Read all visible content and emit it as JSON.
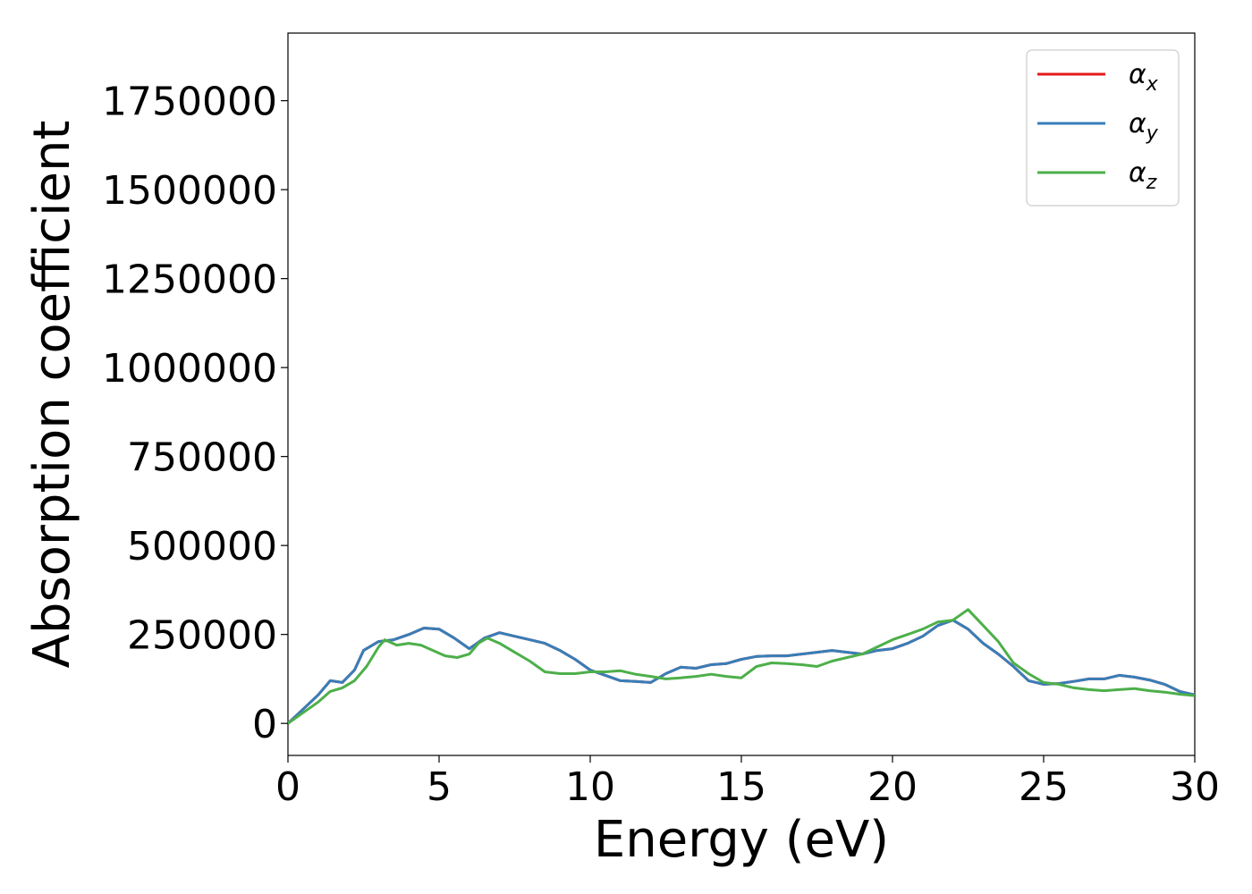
{
  "chart_data": {
    "type": "line",
    "title": "",
    "xlabel": "Energy (eV)",
    "ylabel": "Absorption coefficient",
    "xlim": [
      0,
      30
    ],
    "ylim": [
      -90000,
      1940000
    ],
    "xticks": [
      "0",
      "5",
      "10",
      "15",
      "20",
      "25",
      "30"
    ],
    "yticks": [
      "0",
      "250000",
      "500000",
      "750000",
      "1000000",
      "1250000",
      "1500000",
      "1750000"
    ],
    "grid": false,
    "legend_placement": "top-right",
    "series": [
      {
        "name": "α_x",
        "symbol": "α",
        "subscript": "x",
        "color": "#e41a1c",
        "x": [
          0,
          0.5,
          1,
          1.4,
          1.8,
          2.2,
          2.5,
          3,
          3.5,
          4,
          4.5,
          5,
          5.5,
          6,
          6.5,
          7,
          7.5,
          8,
          8.5,
          9,
          9.5,
          10,
          10.5,
          11,
          11.5,
          12,
          12.5,
          13,
          13.5,
          14,
          14.5,
          15,
          15.5,
          16,
          16.5,
          17,
          17.5,
          18,
          18.5,
          19,
          19.5,
          20,
          20.5,
          21,
          21.5,
          22,
          22.5,
          23,
          23.5,
          24,
          24.5,
          25,
          25.5,
          26,
          26.5,
          27,
          27.5,
          28,
          28.5,
          29,
          29.5,
          30
        ],
        "values": [
          0,
          40000,
          80000,
          120000,
          115000,
          150000,
          205000,
          230000,
          235000,
          250000,
          268000,
          265000,
          240000,
          210000,
          240000,
          255000,
          245000,
          235000,
          225000,
          205000,
          180000,
          150000,
          135000,
          120000,
          118000,
          115000,
          140000,
          158000,
          155000,
          165000,
          168000,
          180000,
          188000,
          190000,
          190000,
          195000,
          200000,
          205000,
          200000,
          195000,
          205000,
          210000,
          225000,
          245000,
          275000,
          290000,
          265000,
          225000,
          195000,
          160000,
          120000,
          110000,
          112000,
          118000,
          125000,
          125000,
          135000,
          130000,
          122000,
          110000,
          90000,
          80000
        ]
      },
      {
        "name": "α_y",
        "symbol": "α",
        "subscript": "y",
        "color": "#377eb8",
        "x": [
          0,
          0.5,
          1,
          1.4,
          1.8,
          2.2,
          2.5,
          3,
          3.5,
          4,
          4.5,
          5,
          5.5,
          6,
          6.5,
          7,
          7.5,
          8,
          8.5,
          9,
          9.5,
          10,
          10.5,
          11,
          11.5,
          12,
          12.5,
          13,
          13.5,
          14,
          14.5,
          15,
          15.5,
          16,
          16.5,
          17,
          17.5,
          18,
          18.5,
          19,
          19.5,
          20,
          20.5,
          21,
          21.5,
          22,
          22.5,
          23,
          23.5,
          24,
          24.5,
          25,
          25.5,
          26,
          26.5,
          27,
          27.5,
          28,
          28.5,
          29,
          29.5,
          30
        ],
        "values": [
          0,
          40000,
          80000,
          120000,
          115000,
          150000,
          205000,
          230000,
          235000,
          250000,
          268000,
          265000,
          240000,
          210000,
          240000,
          255000,
          245000,
          235000,
          225000,
          205000,
          180000,
          150000,
          135000,
          120000,
          118000,
          115000,
          140000,
          158000,
          155000,
          165000,
          168000,
          180000,
          188000,
          190000,
          190000,
          195000,
          200000,
          205000,
          200000,
          195000,
          205000,
          210000,
          225000,
          245000,
          275000,
          290000,
          265000,
          225000,
          195000,
          160000,
          120000,
          110000,
          112000,
          118000,
          125000,
          125000,
          135000,
          130000,
          122000,
          110000,
          90000,
          80000
        ]
      },
      {
        "name": "α_z",
        "symbol": "α",
        "subscript": "z",
        "color": "#4daf4a",
        "x": [
          0,
          0.5,
          1,
          1.4,
          1.8,
          2.2,
          2.6,
          3,
          3.2,
          3.6,
          4,
          4.4,
          4.8,
          5.2,
          5.6,
          6,
          6.3,
          6.6,
          7,
          7.5,
          8,
          8.5,
          9,
          9.5,
          10,
          10.5,
          11,
          11.5,
          12,
          12.5,
          13,
          13.5,
          14,
          14.5,
          15,
          15.5,
          16,
          16.5,
          17,
          17.5,
          18,
          18.5,
          19,
          19.5,
          20,
          20.5,
          21,
          21.5,
          22,
          22.5,
          23,
          23.5,
          24,
          24.5,
          25,
          25.5,
          26,
          26.5,
          27,
          27.5,
          28,
          28.5,
          29,
          29.5,
          30
        ],
        "values": [
          0,
          30000,
          60000,
          90000,
          100000,
          120000,
          160000,
          215000,
          235000,
          220000,
          225000,
          220000,
          205000,
          190000,
          185000,
          195000,
          225000,
          240000,
          225000,
          200000,
          175000,
          145000,
          140000,
          140000,
          145000,
          145000,
          148000,
          138000,
          132000,
          125000,
          128000,
          132000,
          138000,
          132000,
          128000,
          160000,
          170000,
          168000,
          165000,
          160000,
          175000,
          185000,
          195000,
          215000,
          235000,
          250000,
          265000,
          285000,
          290000,
          320000,
          275000,
          230000,
          170000,
          140000,
          115000,
          110000,
          100000,
          95000,
          92000,
          95000,
          98000,
          92000,
          88000,
          82000,
          78000
        ]
      }
    ]
  }
}
